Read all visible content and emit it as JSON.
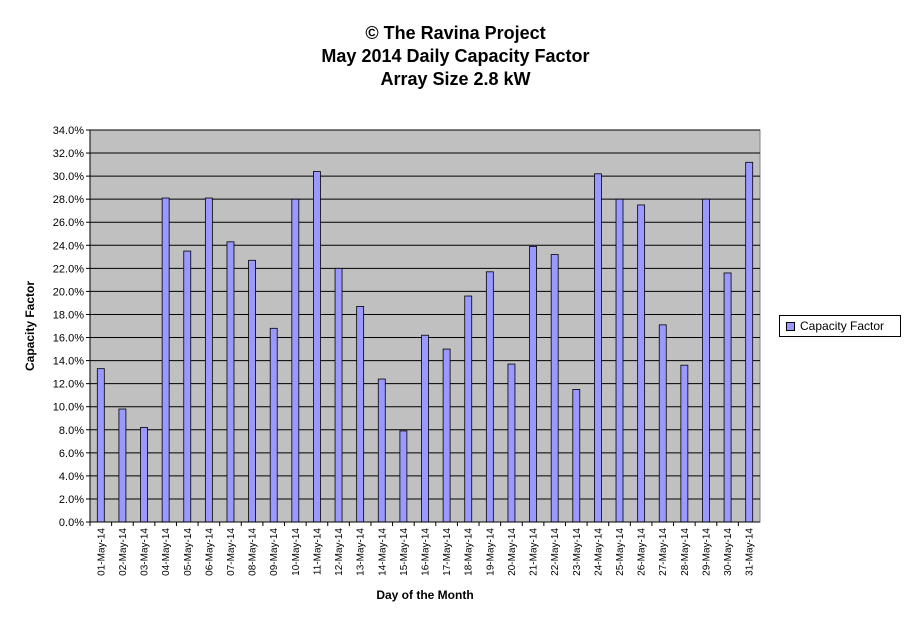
{
  "chart_data": {
    "type": "bar",
    "title_lines": [
      "© The Ravina Project",
      "May 2014 Daily Capacity  Factor",
      "Array Size 2.8 kW"
    ],
    "xlabel": "Day of the Month",
    "ylabel": "Capacity Factor",
    "ylim": [
      0,
      34
    ],
    "yticks": [
      "0.0%",
      "2.0%",
      "4.0%",
      "6.0%",
      "8.0%",
      "10.0%",
      "12.0%",
      "14.0%",
      "16.0%",
      "18.0%",
      "20.0%",
      "22.0%",
      "24.0%",
      "26.0%",
      "28.0%",
      "30.0%",
      "32.0%",
      "34.0%"
    ],
    "grid": true,
    "legend_position": "right",
    "categories": [
      "01-May-14",
      "02-May-14",
      "03-May-14",
      "04-May-14",
      "05-May-14",
      "06-May-14",
      "07-May-14",
      "08-May-14",
      "09-May-14",
      "10-May-14",
      "11-May-14",
      "12-May-14",
      "13-May-14",
      "14-May-14",
      "15-May-14",
      "16-May-14",
      "17-May-14",
      "18-May-14",
      "19-May-14",
      "20-May-14",
      "21-May-14",
      "22-May-14",
      "23-May-14",
      "24-May-14",
      "25-May-14",
      "26-May-14",
      "27-May-14",
      "28-May-14",
      "29-May-14",
      "30-May-14",
      "31-May-14"
    ],
    "series": [
      {
        "name": "Capacity  Factor",
        "color": "#9999ff",
        "values": [
          13.3,
          9.8,
          8.2,
          28.1,
          23.5,
          28.1,
          24.3,
          22.7,
          16.8,
          28.0,
          30.4,
          22.0,
          18.7,
          12.4,
          7.9,
          16.2,
          15.0,
          19.6,
          21.7,
          13.7,
          23.9,
          23.2,
          11.5,
          30.2,
          28.0,
          27.5,
          17.1,
          13.6,
          28.0,
          21.6,
          31.2
        ]
      }
    ]
  },
  "colors": {
    "plot_background": "#c0c0c0",
    "bar_fill": "#9999ff",
    "gridline": "#000000"
  }
}
